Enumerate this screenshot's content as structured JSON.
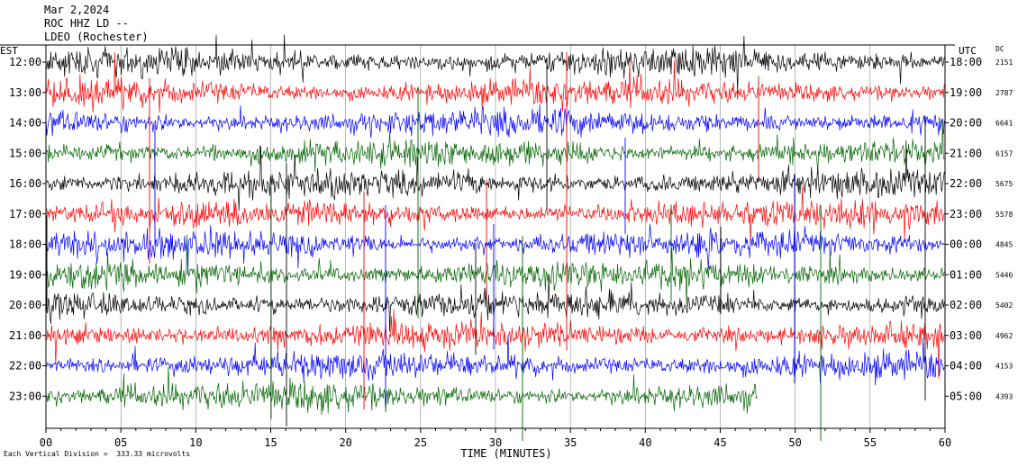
{
  "header": {
    "date": "Mar 2,2024",
    "station": "ROC HHZ LD --",
    "network": "LDEO (Rochester)"
  },
  "footer": {
    "scale_note": "Each Vertical Division =  333.33 microvolts"
  },
  "colors": {
    "black": "#000000",
    "red": "#ff0000",
    "blue": "#0000ff",
    "green": "#006400",
    "grid": "#000000",
    "background": "#ffffff"
  },
  "chart_data": {
    "type": "line",
    "subtype": "helicorder",
    "xlabel": "TIME (MINUTES)",
    "xlim": [
      0,
      60
    ],
    "x_ticks": [
      "00",
      "05",
      "10",
      "15",
      "20",
      "25",
      "30",
      "35",
      "40",
      "45",
      "50",
      "55",
      "60"
    ],
    "left_axis_title": "EST",
    "right_axis_title": "UTC",
    "dc_title": "DC",
    "trace_color_cycle": [
      "black",
      "red",
      "blue",
      "green"
    ],
    "rows": [
      {
        "est": "12:00",
        "utc": "18:00",
        "dc": "2151"
      },
      {
        "est": "13:00",
        "utc": "19:00",
        "dc": "2787"
      },
      {
        "est": "14:00",
        "utc": "20:00",
        "dc": "6641"
      },
      {
        "est": "15:00",
        "utc": "21:00",
        "dc": "6157"
      },
      {
        "est": "16:00",
        "utc": "22:00",
        "dc": "5675"
      },
      {
        "est": "17:00",
        "utc": "23:00",
        "dc": "5578"
      },
      {
        "est": "18:00",
        "utc": "00:00",
        "dc": "4845"
      },
      {
        "est": "19:00",
        "utc": "01:00",
        "dc": "5446"
      },
      {
        "est": "20:00",
        "utc": "02:00",
        "dc": "5402"
      },
      {
        "est": "21:00",
        "utc": "03:00",
        "dc": "4962"
      },
      {
        "est": "22:00",
        "utc": "04:00",
        "dc": "4153"
      },
      {
        "est": "23:00",
        "utc": "05:00",
        "dc": "4393"
      }
    ],
    "last_row_end_minute": 47.5,
    "grid": true
  }
}
